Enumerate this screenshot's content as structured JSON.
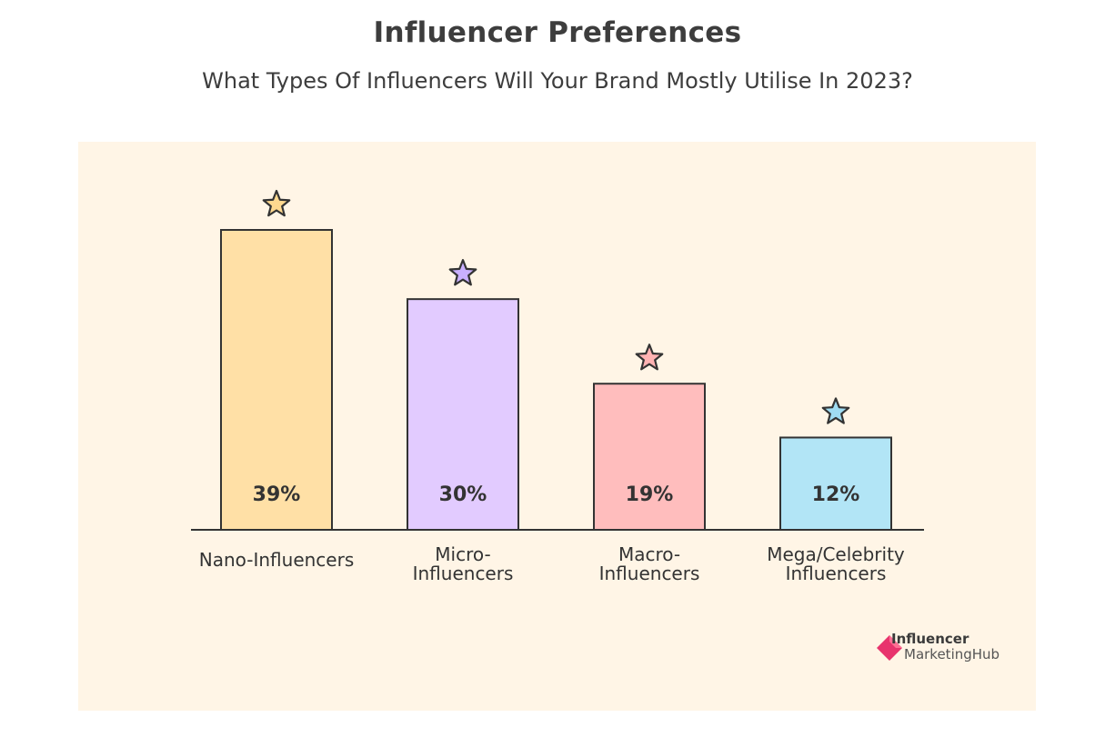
{
  "header": {
    "title": "Influencer Preferences",
    "subtitle": "What Types Of Influencers Will Your Brand Mostly Utilise In 2023?"
  },
  "logo": {
    "line1": "Influencer",
    "line2": "MarketingHub",
    "icon": "influencer-marketing-hub-logo-icon",
    "color": "#e8336d"
  },
  "chart_data": {
    "type": "bar",
    "title": "Influencer Preferences",
    "subtitle": "What Types Of Influencers Will Your Brand Mostly Utilise In 2023?",
    "categories": [
      "Nano-Influencers",
      "Micro-Influencers",
      "Macro-Influencers",
      "Mega/Celebrity Influencers"
    ],
    "category_label_lines": [
      [
        "Nano-Influencers"
      ],
      [
        "Micro-",
        "Influencers"
      ],
      [
        "Macro-",
        "Influencers"
      ],
      [
        "Mega/Celebrity",
        "Influencers"
      ]
    ],
    "values": [
      39,
      30,
      19,
      12
    ],
    "value_labels": [
      "39%",
      "30%",
      "19%",
      "12%"
    ],
    "unit": "%",
    "bar_colors": [
      "#ffe0a6",
      "#e2cbff",
      "#ffbdbd",
      "#b2e5f6"
    ],
    "star_colors": [
      "#ffd98f",
      "#c9b0ff",
      "#ffb3b3",
      "#9fdcf2"
    ],
    "ylim": [
      0,
      40
    ],
    "grid": false,
    "legend": "none",
    "background": "#fff5e6",
    "outline_color": "#333333"
  }
}
